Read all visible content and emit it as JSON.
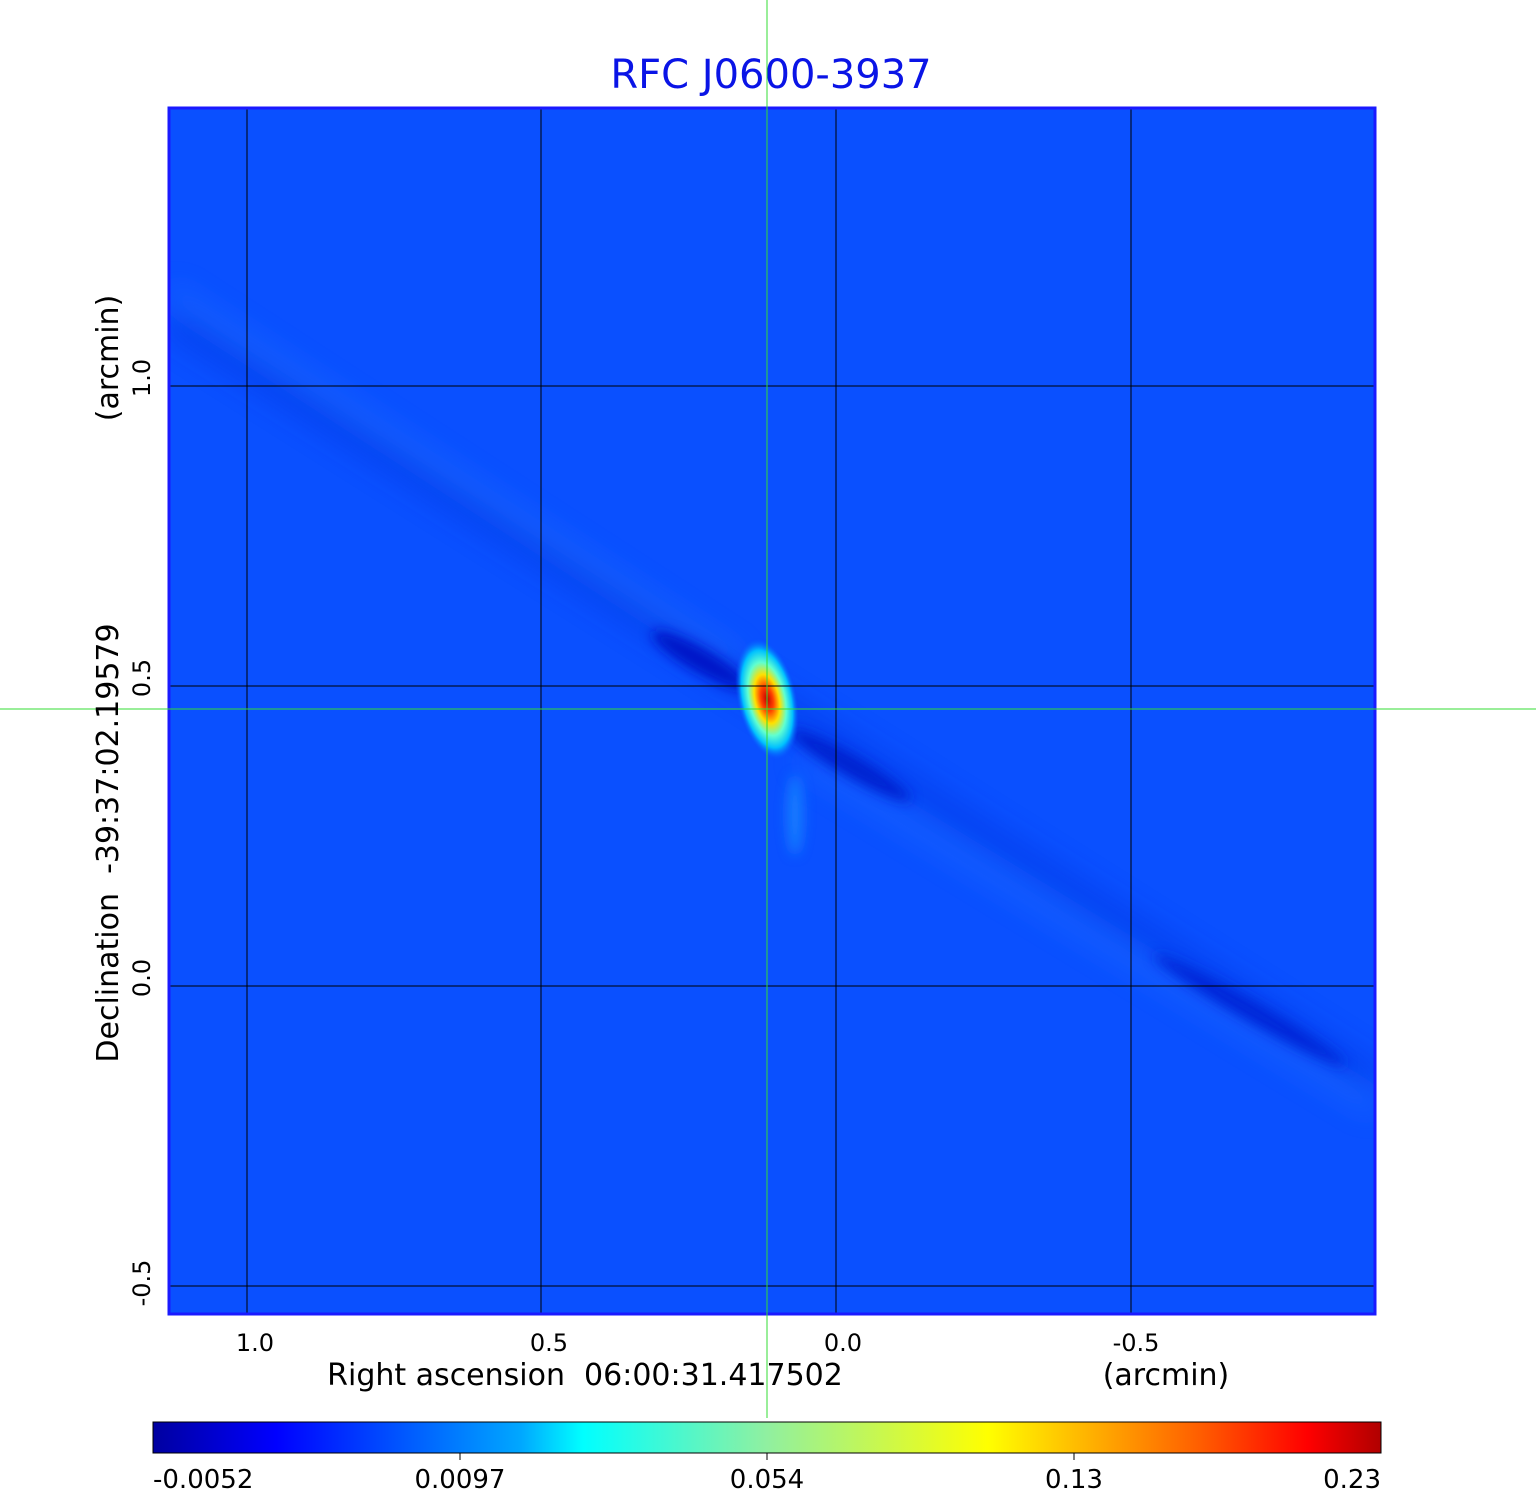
{
  "chart_data": {
    "type": "heatmap",
    "title": "RFC J0600-3937",
    "xlabel": "Right ascension  06:00:31.417502",
    "xunit": "(arcmin)",
    "ylabel": "Declination  -39:37:02.19579",
    "yunit": "(arcmin)",
    "x_ticks": [
      "1.0",
      "0.5",
      "0.0",
      "-0.5"
    ],
    "x_tick_values": [
      1.0,
      0.5,
      0.0,
      -0.5
    ],
    "y_ticks": [
      "1.0",
      "0.5",
      "0.0",
      "-0.5"
    ],
    "y_tick_values": [
      1.0,
      0.5,
      0.0,
      -0.5
    ],
    "xlim": [
      1.13,
      -0.92
    ],
    "ylim": [
      -0.55,
      1.47
    ],
    "grid": true,
    "crosshair": {
      "x": 0.117,
      "y": 0.462
    },
    "peak": {
      "x": 0.117,
      "y": 0.462,
      "value": 0.23
    },
    "colormap": "jet",
    "colorbar": {
      "ticks": [
        "-0.0052",
        "0.0097",
        "0.054",
        "0.13",
        "0.23"
      ],
      "range": [
        -0.0052,
        0.23
      ],
      "placement": "bottom"
    },
    "colors": {
      "title": "#0a14e6",
      "background": "#0a50ff",
      "frame": "#1a1aff",
      "grid": "#000000",
      "crosshair": "#33dd33"
    }
  }
}
